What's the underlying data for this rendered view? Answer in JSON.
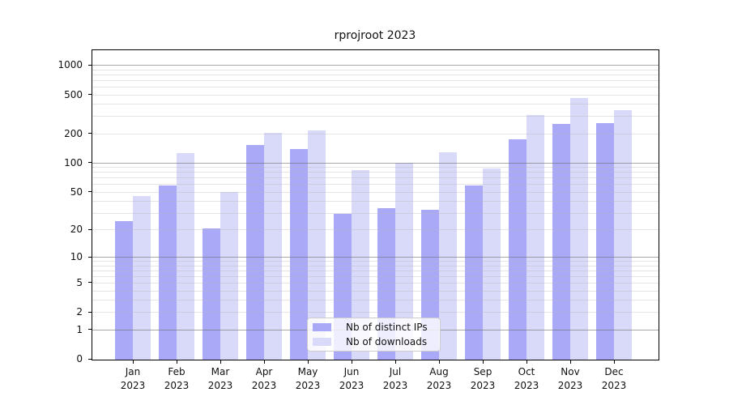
{
  "chart_data": {
    "type": "bar",
    "title": "rprojroot 2023",
    "y_scale": "log1p",
    "grid": true,
    "legend_position": "lower-center",
    "ylim": [
      0,
      1500
    ],
    "y_ticks": [
      0,
      1,
      2,
      5,
      10,
      20,
      50,
      100,
      200,
      500,
      1000
    ],
    "y_major_gridlines": [
      1,
      10,
      100,
      1000
    ],
    "categories": [
      {
        "month": "Jan",
        "year": "2023"
      },
      {
        "month": "Feb",
        "year": "2023"
      },
      {
        "month": "Mar",
        "year": "2023"
      },
      {
        "month": "Apr",
        "year": "2023"
      },
      {
        "month": "May",
        "year": "2023"
      },
      {
        "month": "Jun",
        "year": "2023"
      },
      {
        "month": "Jul",
        "year": "2023"
      },
      {
        "month": "Aug",
        "year": "2023"
      },
      {
        "month": "Sep",
        "year": "2023"
      },
      {
        "month": "Oct",
        "year": "2023"
      },
      {
        "month": "Nov",
        "year": "2023"
      },
      {
        "month": "Dec",
        "year": "2023"
      }
    ],
    "series": [
      {
        "key": "distinct-ips",
        "name": "Nb of distinct IPs",
        "color": "#a9a9f8",
        "values": [
          25,
          59,
          21,
          154,
          140,
          30,
          34,
          33,
          59,
          178,
          254,
          259
        ]
      },
      {
        "key": "downloads",
        "name": "Nb of downloads",
        "color": "#d9d9fa",
        "values": [
          46,
          127,
          51,
          208,
          220,
          86,
          102,
          131,
          88,
          312,
          465,
          352
        ]
      }
    ]
  },
  "colors": {
    "background": "#ffffff",
    "spine": "#000000",
    "grid_major": "#9a9a9a",
    "grid_minor": "#e4e4e4",
    "legend_border": "#cccccc"
  }
}
